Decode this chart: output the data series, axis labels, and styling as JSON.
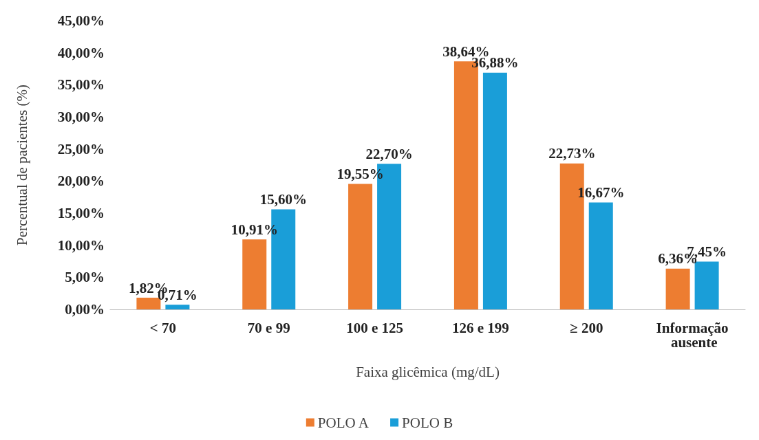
{
  "chart_data": {
    "type": "bar",
    "xlabel": "Faixa glicêmica (mg/dL)",
    "ylabel": "Percentual de pacientes (%)",
    "categories": [
      "< 70",
      "70 e 99",
      "100 e 125",
      "126 e 199",
      "≥ 200",
      "Informação ausente"
    ],
    "series": [
      {
        "name": "POLO A",
        "color": "#ed7d31",
        "values": [
          1.82,
          10.91,
          19.55,
          38.64,
          22.73,
          6.36
        ],
        "value_labels": [
          "1,82%",
          "10,91%",
          "19,55%",
          "38,64%",
          "22,73%",
          "6,36%"
        ]
      },
      {
        "name": "POLO B",
        "color": "#1a9ed8",
        "values": [
          0.71,
          15.6,
          22.7,
          36.88,
          16.67,
          7.45
        ],
        "value_labels": [
          "0,71%",
          "15,60%",
          "22,70%",
          "36,88%",
          "16,67%",
          "7,45%"
        ]
      }
    ],
    "ylim": [
      0,
      45
    ],
    "yticks": [
      {
        "value": 0,
        "label": "0,00%"
      },
      {
        "value": 5,
        "label": "5,00%"
      },
      {
        "value": 10,
        "label": "10,00%"
      },
      {
        "value": 15,
        "label": "15,00%"
      },
      {
        "value": 20,
        "label": "20,00%"
      },
      {
        "value": 25,
        "label": "25,00%"
      },
      {
        "value": 30,
        "label": "30,00%"
      },
      {
        "value": 35,
        "label": "35,00%"
      },
      {
        "value": 40,
        "label": "40,00%"
      },
      {
        "value": 45,
        "label": "45,00%"
      }
    ],
    "grid": false,
    "legend": "bottom"
  }
}
